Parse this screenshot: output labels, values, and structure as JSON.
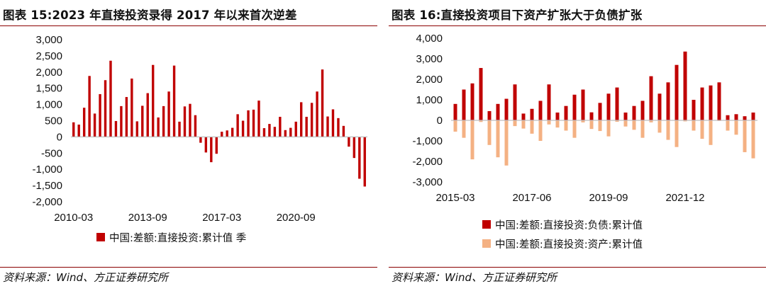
{
  "charts": [
    {
      "title": "图表 15:2023 年直接投资录得 2017 年以来首次逆差",
      "source": "资料来源：Wind、方正证券研究所",
      "chart_data": {
        "type": "bar",
        "title": "图表 15:2023 年直接投资录得 2017 年以来首次逆差",
        "ylim": [
          -2000,
          3000
        ],
        "y_ticks": [
          "3,000",
          "2,500",
          "2,000",
          "1,500",
          "1,000",
          "500",
          "0",
          "-500",
          "-1,000",
          "-1,500",
          "-2,000"
        ],
        "y_tick_values": [
          3000,
          2500,
          2000,
          1500,
          1000,
          500,
          0,
          -500,
          -1000,
          -1500,
          -2000
        ],
        "x_ticks": [
          "2010-03",
          "2013-09",
          "2017-03",
          "2020-09"
        ],
        "x_tick_index": [
          0,
          14,
          28,
          42
        ],
        "categories": [
          "2010Q1",
          "2010Q2",
          "2010Q3",
          "2010Q4",
          "2011Q1",
          "2011Q2",
          "2011Q3",
          "2011Q4",
          "2012Q1",
          "2012Q2",
          "2012Q3",
          "2012Q4",
          "2013Q1",
          "2013Q2",
          "2013Q3",
          "2013Q4",
          "2014Q1",
          "2014Q2",
          "2014Q3",
          "2014Q4",
          "2015Q1",
          "2015Q2",
          "2015Q3",
          "2015Q4",
          "2016Q1",
          "2016Q2",
          "2016Q3",
          "2016Q4",
          "2017Q1",
          "2017Q2",
          "2017Q3",
          "2017Q4",
          "2018Q1",
          "2018Q2",
          "2018Q3",
          "2018Q4",
          "2019Q1",
          "2019Q2",
          "2019Q3",
          "2019Q4",
          "2020Q1",
          "2020Q2",
          "2020Q3",
          "2020Q4",
          "2021Q1",
          "2021Q2",
          "2021Q3",
          "2021Q4",
          "2022Q1",
          "2022Q2",
          "2022Q3",
          "2022Q4",
          "2023Q1",
          "2023Q2",
          "2023Q3",
          "2023Q4"
        ],
        "series": [
          {
            "name": "中国:差额:直接投资:累计值 季",
            "color": "#c00000",
            "values": [
              450,
              380,
              900,
              1880,
              720,
              1320,
              1750,
              2350,
              490,
              950,
              1230,
              1800,
              480,
              960,
              1350,
              2220,
              600,
              950,
              1400,
              2200,
              470,
              940,
              1020,
              670,
              -180,
              -480,
              -780,
              -520,
              160,
              200,
              280,
              700,
              500,
              820,
              840,
              1120,
              270,
              400,
              310,
              620,
              210,
              280,
              470,
              1070,
              620,
              1050,
              1400,
              2080,
              630,
              850,
              580,
              340,
              -300,
              -650,
              -1290,
              -1530
            ]
          }
        ]
      }
    },
    {
      "title": "图表 16:直接投资项目下资产扩张大于负债扩张",
      "source": "资料来源：Wind、方正证券研究所",
      "chart_data": {
        "type": "bar",
        "title": "图表 16:直接投资项目下资产扩张大于负债扩张",
        "ylim": [
          -3000,
          4000
        ],
        "y_ticks": [
          "4,000",
          "3,000",
          "2,000",
          "1,000",
          "0",
          "-1,000",
          "-2,000",
          "-3,000"
        ],
        "y_tick_values": [
          4000,
          3000,
          2000,
          1000,
          0,
          -1000,
          -2000,
          -3000
        ],
        "x_ticks": [
          "2015-03",
          "2017-06",
          "2019-09",
          "2021-12"
        ],
        "x_tick_index": [
          0,
          9,
          18,
          27
        ],
        "categories": [
          "2015Q1",
          "2015Q2",
          "2015Q3",
          "2015Q4",
          "2016Q1",
          "2016Q2",
          "2016Q3",
          "2016Q4",
          "2017Q1",
          "2017Q2",
          "2017Q3",
          "2017Q4",
          "2018Q1",
          "2018Q2",
          "2018Q3",
          "2018Q4",
          "2019Q1",
          "2019Q2",
          "2019Q3",
          "2019Q4",
          "2020Q1",
          "2020Q2",
          "2020Q3",
          "2020Q4",
          "2021Q1",
          "2021Q2",
          "2021Q3",
          "2021Q4",
          "2022Q1",
          "2022Q2",
          "2022Q3",
          "2022Q4",
          "2023Q1",
          "2023Q2",
          "2023Q3",
          "2023Q4"
        ],
        "series": [
          {
            "name": "中国:差额:直接投资:资产:累计值",
            "color": "#f4b183",
            "values": [
              -550,
              -850,
              -1900,
              -80,
              -1200,
              -1800,
              -2200,
              -280,
              -400,
              -650,
              -1000,
              -200,
              -350,
              -500,
              -850,
              -100,
              -420,
              -520,
              -780,
              -70,
              -300,
              -460,
              -850,
              -100,
              -600,
              -950,
              -1300,
              -50,
              -500,
              -900,
              -1200,
              -30,
              -500,
              -700,
              -1550,
              -1850
            ]
          },
          {
            "name": "中国:差额:直接投资:负债:累计值",
            "color": "#c00000",
            "values": [
              800,
              1500,
              1800,
              2550,
              450,
              800,
              1050,
              1750,
              330,
              560,
              950,
              1750,
              380,
              700,
              1250,
              1500,
              390,
              850,
              1300,
              1600,
              380,
              700,
              950,
              2150,
              1300,
              1850,
              2700,
              3350,
              1000,
              1600,
              1700,
              1850,
              250,
              300,
              200,
              380
            ]
          }
        ]
      }
    }
  ]
}
